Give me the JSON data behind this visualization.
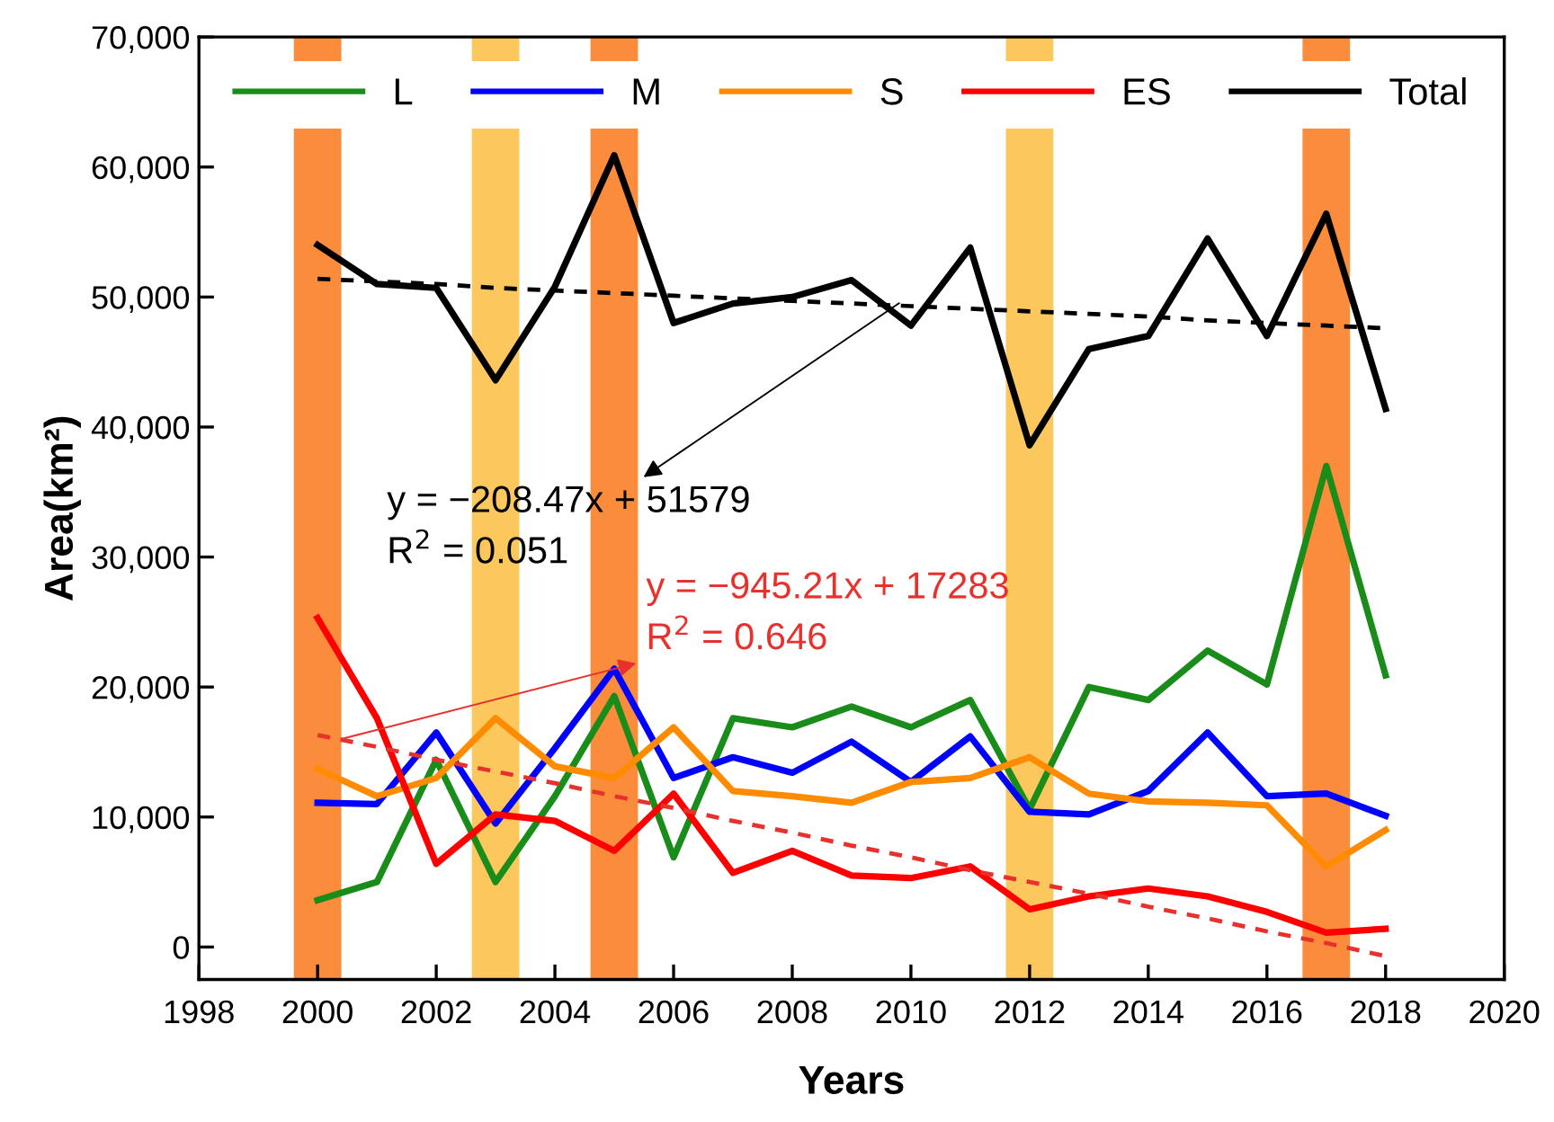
{
  "chart_data": {
    "type": "line",
    "xlabel": "Years",
    "ylabel": "Area(km²)",
    "x": [
      2000,
      2001,
      2002,
      2003,
      2004,
      2005,
      2006,
      2007,
      2008,
      2009,
      2010,
      2011,
      2012,
      2013,
      2014,
      2015,
      2016,
      2017,
      2018
    ],
    "series": [
      {
        "name": "L",
        "color": "#1a8c1a",
        "values": [
          3600,
          5000,
          14400,
          5000,
          11600,
          19300,
          6900,
          17600,
          16900,
          18500,
          16900,
          19000,
          10600,
          20000,
          19000,
          22800,
          20200,
          37000,
          20900
        ]
      },
      {
        "name": "M",
        "color": "#0000ff",
        "values": [
          11100,
          11000,
          16500,
          9500,
          15300,
          21400,
          13000,
          14600,
          13400,
          15800,
          12700,
          16200,
          10400,
          10200,
          12000,
          16500,
          11600,
          11800,
          10100
        ]
      },
      {
        "name": "S",
        "color": "#ff8c00",
        "values": [
          13700,
          11600,
          13000,
          17600,
          13900,
          13000,
          16900,
          12000,
          11600,
          11100,
          12700,
          13000,
          14600,
          11800,
          11200,
          11100,
          10900,
          6200,
          9000
        ]
      },
      {
        "name": "ES",
        "color": "#ff0000",
        "values": [
          25300,
          17600,
          6400,
          10200,
          9700,
          7400,
          11800,
          5700,
          7400,
          5500,
          5300,
          6200,
          2900,
          3900,
          4500,
          3900,
          2700,
          1100,
          1400
        ]
      },
      {
        "name": "Total",
        "color": "#000000",
        "values": [
          54000,
          51000,
          50700,
          43600,
          50800,
          60900,
          48000,
          49500,
          50000,
          51300,
          47800,
          53800,
          38600,
          46000,
          47000,
          54500,
          47000,
          56400,
          41400
        ]
      },
      {
        "type": "line",
        "color": "#000000",
        "line_style": "dashed",
        "values": [
          51400,
          51200,
          51000,
          50700,
          50500,
          50300,
          50100,
          49900,
          49700,
          49500,
          49300,
          49100,
          48900,
          48700,
          48500,
          48200,
          48000,
          47800,
          47600
        ]
      },
      {
        "type": "line",
        "color": "#e8302c",
        "line_style": "dashed",
        "values": [
          16300,
          15400,
          14400,
          13500,
          12600,
          11600,
          10700,
          9700,
          8800,
          7800,
          6900,
          5900,
          5000,
          4100,
          3100,
          2200,
          1200,
          300,
          -700
        ]
      }
    ],
    "xlim": [
      1998,
      2020
    ],
    "xticks": [
      1998,
      2000,
      2002,
      2004,
      2006,
      2008,
      2010,
      2012,
      2014,
      2016,
      2018,
      2020
    ],
    "ylim": [
      -2500,
      70000
    ],
    "yticks": [
      {
        "value": 0,
        "label": "0"
      },
      {
        "value": 10000,
        "label": "10,000"
      },
      {
        "value": 20000,
        "label": "20,000"
      },
      {
        "value": 30000,
        "label": "30,000"
      },
      {
        "value": 40000,
        "label": "40,000"
      },
      {
        "value": 50000,
        "label": "50,000"
      },
      {
        "value": 60000,
        "label": "60,000"
      },
      {
        "value": 70000,
        "label": "70,000"
      }
    ],
    "bands": [
      {
        "axis": "x",
        "from": 1999.6,
        "to": 2000.4,
        "color": "#fa8c3c"
      },
      {
        "axis": "x",
        "from": 2002.6,
        "to": 2003.4,
        "color": "#fcc85e"
      },
      {
        "axis": "x",
        "from": 2004.6,
        "to": 2005.4,
        "color": "#fa8c3c"
      },
      {
        "axis": "x",
        "from": 2011.6,
        "to": 2012.4,
        "color": "#fcc85e"
      },
      {
        "axis": "x",
        "from": 2016.6,
        "to": 2017.4,
        "color": "#fa8c3c"
      }
    ],
    "annotations": [
      {
        "text": "y = −208.47x + 51579\nR$^{2}$ = 0.051",
        "x": 2009.8,
        "y": 49520
      },
      {
        "text": "y = −945.21x + 17283\nR$^{2}$ = 0.646",
        "x": 2000.4,
        "y": 16000
      }
    ],
    "grid": false,
    "legend": "top",
    "marker": "none",
    "line_style": "solid"
  }
}
